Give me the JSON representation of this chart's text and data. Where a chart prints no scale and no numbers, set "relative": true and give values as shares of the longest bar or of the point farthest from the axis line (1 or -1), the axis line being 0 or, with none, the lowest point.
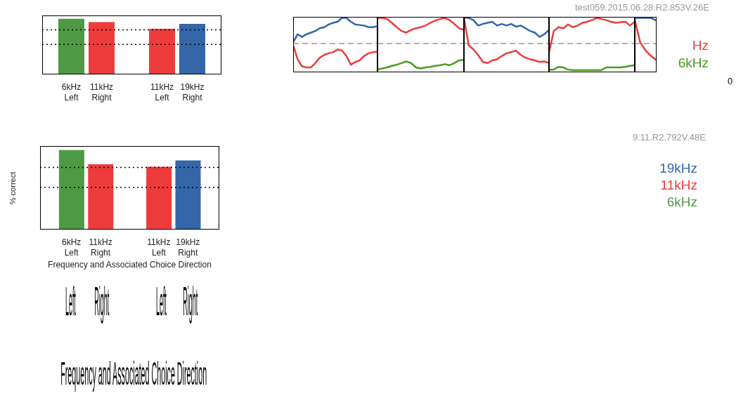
{
  "chart_data": [
    {
      "type": "bar",
      "relative": true,
      "categories": [
        "6kHz\nLeft",
        "11kHz\nRight",
        null,
        "11kHz\nLeft",
        "19kHz\nRight"
      ],
      "values": [
        1,
        0.94,
        null,
        0.82,
        0.91
      ],
      "colors": [
        "#4e9a44",
        "#ee3b3b",
        null,
        "#ee3b3b",
        "#3466a8"
      ],
      "ref_lines": [
        {
          "axis": "y",
          "value": 0.8,
          "color": "#000000",
          "line_style": "dotted"
        },
        {
          "axis": "y",
          "value": 0.54,
          "color": "#000000",
          "line_style": "dotted"
        }
      ]
    },
    {
      "type": "bar",
      "relative": true,
      "ylabel": "% correct",
      "xlabel": "Frequency and Associated Choice Direction",
      "categories": [
        "6kHz\nLeft",
        "11kHz\nRight",
        null,
        "11kHz\nLeft",
        "19kHz\nRight"
      ],
      "values": [
        1,
        0.82,
        null,
        0.79,
        0.87
      ],
      "colors": [
        "#4e9a44",
        "#ee3b3b",
        null,
        "#ee3b3b",
        "#3466a8"
      ],
      "ref_lines": [
        {
          "axis": "y",
          "value": 0.78,
          "color": "#000000",
          "line_style": "dotted"
        },
        {
          "axis": "y",
          "value": 0.53,
          "color": "#000000",
          "line_style": "dotted"
        }
      ]
    },
    {
      "type": "line",
      "relative": true,
      "categories": [
        null,
        null,
        null,
        null,
        null,
        null,
        null,
        null,
        null,
        null,
        null,
        null,
        null,
        null,
        null,
        null,
        null,
        null,
        null,
        null
      ],
      "ref_lines": [
        {
          "axis": "y",
          "value": 0.53,
          "color": "#999999",
          "line_style": "dashed"
        }
      ],
      "series": [
        {
          "color": "#3466a8",
          "values": [
            0.55,
            0.7,
            0.65,
            0.7,
            0.73,
            0.76,
            0.81,
            0.83,
            0.88,
            0.91,
            0.93,
            1.0,
            1.0,
            0.93,
            0.88,
            0.87,
            0.86,
            0.83,
            0.83,
            0.85
          ]
        },
        {
          "color": "#ee3b3b",
          "values": [
            0.5,
            0.24,
            0.11,
            0.09,
            0.09,
            0.17,
            0.27,
            0.32,
            0.35,
            0.37,
            0.42,
            0.4,
            0.3,
            0.14,
            0.19,
            0.22,
            0.3,
            0.35,
            0.37,
            0.38
          ]
        }
      ]
    },
    {
      "type": "line",
      "relative": true,
      "categories": [
        null,
        null,
        null,
        null,
        null,
        null,
        null,
        null,
        null,
        null,
        null,
        null,
        null,
        null,
        null,
        null,
        null,
        null,
        null
      ],
      "ref_lines": [
        {
          "axis": "y",
          "value": 0.53,
          "color": "#999999",
          "line_style": "dashed"
        }
      ],
      "series": [
        {
          "color": "#ee3b3b",
          "values": [
            1.0,
            1.0,
            0.98,
            0.91,
            0.83,
            0.76,
            0.73,
            0.78,
            0.81,
            0.83,
            0.86,
            0.91,
            0.95,
            0.98,
            1.0,
            0.96,
            0.89,
            0.81,
            0.78
          ]
        },
        {
          "color": "#4e9a1e",
          "values": [
            0.05,
            0.07,
            0.09,
            0.12,
            0.14,
            0.17,
            0.2,
            0.17,
            0.09,
            0.07,
            0.09,
            0.1,
            0.12,
            0.13,
            0.15,
            0.13,
            0.17,
            0.22,
            0.23
          ]
        }
      ]
    },
    {
      "type": "line",
      "relative": true,
      "categories": [
        null,
        null,
        null,
        null,
        null,
        null,
        null,
        null,
        null,
        null,
        null,
        null,
        null,
        null,
        null,
        null,
        null,
        null,
        null
      ],
      "ref_lines": [
        {
          "axis": "y",
          "value": 0.53,
          "color": "#999999",
          "line_style": "dashed"
        }
      ],
      "series": [
        {
          "color": "#3466a8",
          "values": [
            1.0,
            1.0,
            0.96,
            0.86,
            0.89,
            0.91,
            0.93,
            0.86,
            0.89,
            0.86,
            0.89,
            0.84,
            0.86,
            0.81,
            0.76,
            0.73,
            0.65,
            0.7,
            0.78
          ]
        },
        {
          "color": "#ee3b3b",
          "values": [
            1.0,
            0.5,
            0.42,
            0.32,
            0.19,
            0.17,
            0.22,
            0.24,
            0.3,
            0.35,
            0.37,
            0.4,
            0.32,
            0.27,
            0.24,
            0.22,
            0.19,
            0.2,
            0.17
          ]
        }
      ]
    },
    {
      "type": "line",
      "relative": true,
      "categories": [
        null,
        null,
        null,
        null,
        null,
        null,
        null,
        null,
        null,
        null,
        null,
        null,
        null,
        null,
        null,
        null,
        null,
        null,
        null
      ],
      "ref_lines": [
        {
          "axis": "y",
          "value": 0.53,
          "color": "#999999",
          "line_style": "dashed"
        }
      ],
      "series": [
        {
          "color": "#ee3b3b",
          "values": [
            0.37,
            0.76,
            0.83,
            0.81,
            0.88,
            0.83,
            0.86,
            0.91,
            0.93,
            0.96,
            1.0,
            0.98,
            0.96,
            0.93,
            0.91,
            0.92,
            0.93,
            0.86,
            0.93
          ]
        },
        {
          "color": "#4e9a1e",
          "values": [
            0.05,
            0.05,
            0.1,
            0.09,
            0.05,
            0.04,
            0.04,
            0.04,
            0.04,
            0.04,
            0.04,
            0.04,
            0.09,
            0.09,
            0.09,
            0.09,
            0.1,
            0.12,
            0.13
          ]
        }
      ]
    },
    {
      "type": "line",
      "relative": true,
      "categories": [
        null,
        null,
        null,
        null,
        null
      ],
      "ref_lines": [
        {
          "axis": "y",
          "value": 0.53,
          "color": "#999999",
          "line_style": "dashed"
        }
      ],
      "series": [
        {
          "color": "#3466a8",
          "values": [
            1,
            1,
            1,
            1,
            0.95
          ]
        },
        {
          "color": "#ee3b3b",
          "values": [
            0.96,
            0.55,
            0.4,
            0.3,
            0.22
          ]
        }
      ]
    },
    {
      "type": "other",
      "annotations": [
        "test059.2015.06.28.R2.853V.26E",
        "0"
      ],
      "series": [
        {
          "name": "Hz",
          "color": "#ee3b3b"
        },
        {
          "name": "6kHz",
          "color": "#4e9a1e"
        }
      ]
    },
    {
      "type": "other",
      "annotations": [
        "9.11.R2.792V.48E"
      ],
      "series": [
        {
          "name": "19kHz",
          "color": "#3466a8"
        },
        {
          "name": "11kHz",
          "color": "#ee3b3b"
        },
        {
          "name": "6kHz",
          "color": "#4e9a44"
        }
      ]
    },
    {
      "type": "other",
      "categories": [
        "Left",
        "Right",
        "Left",
        "Right"
      ],
      "xlabel": "Frequency and Associated Choice Direction"
    }
  ]
}
